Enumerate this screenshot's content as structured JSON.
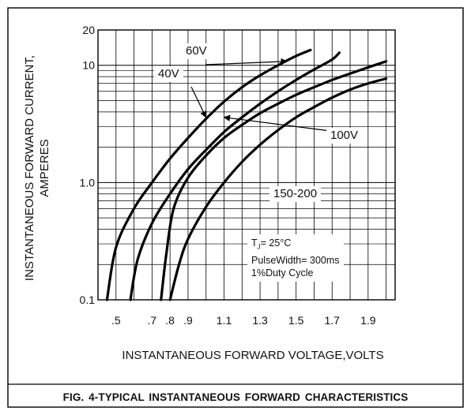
{
  "caption": "FIG. 4-TYPICAL INSTANTANEOUS FORWARD CHARACTERISTICS",
  "chart_data": {
    "type": "line",
    "title": "",
    "xlabel": "INSTANTANEOUS FORWARD VOLTAGE,VOLTS",
    "ylabel_lines": [
      "INSTANTANEOUS FORWARD CURRENT,",
      "AMPERES"
    ],
    "xscale": "linear",
    "yscale": "log",
    "xlim": [
      0.4,
      2.05
    ],
    "ylim": [
      0.1,
      20
    ],
    "x_ticks": [
      0.5,
      0.7,
      0.8,
      0.9,
      1.1,
      1.3,
      1.5,
      1.7,
      1.9
    ],
    "x_tick_labels": [
      ".5",
      ".7",
      ".8",
      ".9",
      "1.1",
      "1.3",
      "1.5",
      "1.7",
      "1.9"
    ],
    "y_tick_values": [
      0.1,
      1.0,
      10,
      20
    ],
    "y_tick_labels": [
      "0.1",
      "1.0",
      "10",
      "20"
    ],
    "grid": true,
    "series": [
      {
        "name": "40V",
        "x": [
          0.45,
          0.5,
          0.6,
          0.7,
          0.8,
          0.9,
          1.0,
          1.1,
          1.2,
          1.3,
          1.4,
          1.5,
          1.58
        ],
        "y": [
          0.1,
          0.28,
          0.6,
          1.0,
          1.6,
          2.4,
          3.5,
          4.9,
          6.5,
          8.2,
          10.0,
          12.0,
          13.5
        ]
      },
      {
        "name": "60V",
        "x": [
          0.58,
          0.62,
          0.7,
          0.8,
          0.9,
          1.0,
          1.1,
          1.2,
          1.3,
          1.4,
          1.5,
          1.6,
          1.7,
          1.74
        ],
        "y": [
          0.1,
          0.22,
          0.45,
          0.8,
          1.3,
          1.9,
          2.7,
          3.6,
          4.7,
          6.0,
          7.5,
          9.2,
          11.2,
          12.8
        ]
      },
      {
        "name": "100V",
        "x": [
          0.75,
          0.78,
          0.82,
          0.9,
          1.0,
          1.1,
          1.2,
          1.3,
          1.4,
          1.5,
          1.6,
          1.7,
          1.8,
          1.9,
          2.0
        ],
        "y": [
          0.1,
          0.25,
          0.6,
          1.1,
          1.7,
          2.4,
          3.1,
          3.9,
          4.7,
          5.6,
          6.5,
          7.5,
          8.5,
          9.6,
          10.8
        ]
      },
      {
        "name": "150-200",
        "x": [
          0.8,
          0.85,
          0.9,
          1.0,
          1.1,
          1.2,
          1.3,
          1.4,
          1.5,
          1.6,
          1.7,
          1.8,
          1.9,
          2.0
        ],
        "y": [
          0.1,
          0.2,
          0.33,
          0.62,
          1.0,
          1.5,
          2.1,
          2.8,
          3.6,
          4.4,
          5.3,
          6.2,
          7.0,
          7.7
        ]
      }
    ],
    "curve_labels": [
      "60V",
      "40V",
      "100V",
      "150-200"
    ],
    "conditions": [
      "T",
      "J",
      "= 25",
      "°C",
      "PulseWidth= 300ms",
      "1%Duty Cycle"
    ]
  }
}
